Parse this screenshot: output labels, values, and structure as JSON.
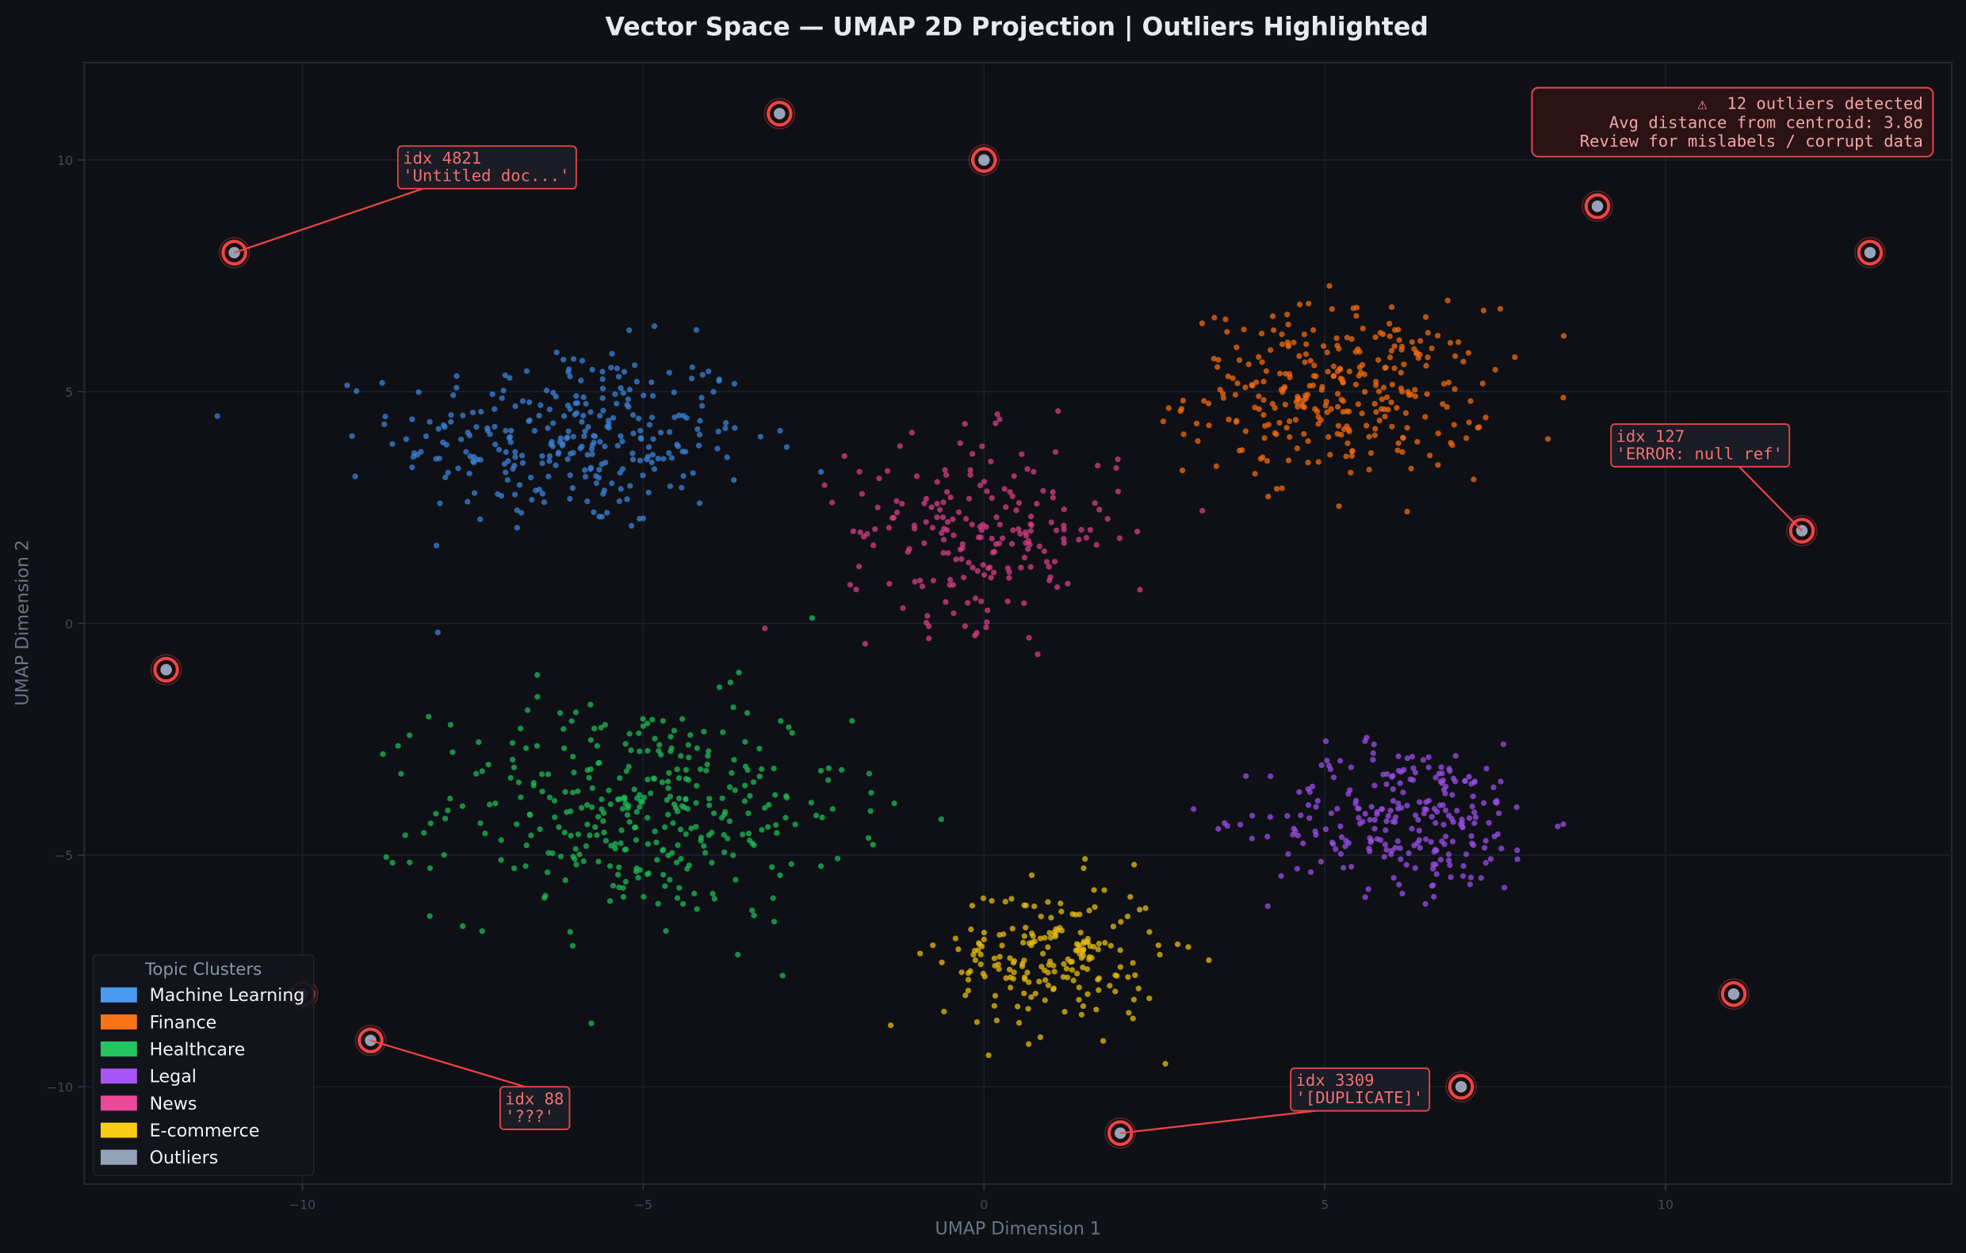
{
  "chart_data": {
    "type": "scatter",
    "title": "Vector Space — UMAP 2D Projection  |  Outliers Highlighted",
    "xlabel": "UMAP Dimension 1",
    "ylabel": "UMAP Dimension 2",
    "xlim": [
      -13.2,
      14.2
    ],
    "ylim": [
      -12.1,
      12.1
    ],
    "xticks": [
      -10,
      -5,
      0,
      5,
      10
    ],
    "yticks": [
      -10,
      -5,
      0,
      5,
      10
    ],
    "xtick_labels": [
      "−10",
      "−5",
      "0",
      "5",
      "10"
    ],
    "ytick_labels": [
      "−10",
      "−5",
      "0",
      "5",
      "10"
    ],
    "grid": true,
    "legend": {
      "title": "Topic Clusters",
      "placement": "bottom-left",
      "entries": [
        {
          "label": "Machine Learning",
          "color": "#4a9af0"
        },
        {
          "label": "Finance",
          "color": "#f97316"
        },
        {
          "label": "Healthcare",
          "color": "#22c55e"
        },
        {
          "label": "Legal",
          "color": "#a855f7"
        },
        {
          "label": "News",
          "color": "#ec4899"
        },
        {
          "label": "E-commerce",
          "color": "#facc15"
        },
        {
          "label": "Outliers",
          "color": "#94a3b8"
        }
      ]
    },
    "clusters": [
      {
        "name": "Machine Learning",
        "color": "#3b82d6",
        "center": [
          -6,
          4
        ],
        "spread": [
          1.3,
          1.0
        ],
        "count": 300
      },
      {
        "name": "Finance",
        "color": "#f06a10",
        "center": [
          5.2,
          5
        ],
        "spread": [
          1.1,
          0.9
        ],
        "count": 300
      },
      {
        "name": "Healthcare",
        "color": "#1fb855",
        "center": [
          -5,
          -4
        ],
        "spread": [
          1.5,
          1.2
        ],
        "count": 350
      },
      {
        "name": "Legal",
        "color": "#9a4ee6",
        "center": [
          6.2,
          -4.2
        ],
        "spread": [
          1.0,
          0.8
        ],
        "count": 250
      },
      {
        "name": "News",
        "color": "#d63d86",
        "center": [
          0,
          2
        ],
        "spread": [
          1.0,
          1.0
        ],
        "count": 200
      },
      {
        "name": "E-commerce",
        "color": "#e6bb10",
        "center": [
          1,
          -7.2
        ],
        "spread": [
          0.8,
          0.8
        ],
        "count": 200
      }
    ],
    "outliers": {
      "color": "#94a3b8",
      "ring_color": "#ef4444",
      "points": [
        [
          -11,
          8
        ],
        [
          -3,
          11
        ],
        [
          0,
          10
        ],
        [
          9,
          9
        ],
        [
          13,
          8
        ],
        [
          12,
          2
        ],
        [
          -12,
          -1
        ],
        [
          -10,
          -8
        ],
        [
          -9,
          -9
        ],
        [
          2,
          -11
        ],
        [
          7,
          -10
        ],
        [
          11,
          -8
        ]
      ]
    },
    "annotations": [
      {
        "lines": [
          "idx 4821",
          "'Untitled doc...'"
        ],
        "target": [
          -11,
          8
        ],
        "label_at": [
          -8.6,
          10.3
        ]
      },
      {
        "lines": [
          "idx 127",
          "'ERROR: null ref'"
        ],
        "target": [
          12,
          2
        ],
        "label_at": [
          9.2,
          4.3
        ]
      },
      {
        "lines": [
          "idx 88",
          "'???'"
        ],
        "target": [
          -9,
          -9
        ],
        "label_at": [
          -7.1,
          -10
        ]
      },
      {
        "lines": [
          "idx 3309",
          "'[DUPLICATE]'"
        ],
        "target": [
          2,
          -11
        ],
        "label_at": [
          4.5,
          -9.6
        ]
      }
    ],
    "info_box": {
      "lines": [
        "⚠  12 outliers detected",
        "Avg distance from centroid: 3.8σ",
        "Review for mislabels / corrupt data"
      ],
      "placement": "top-right"
    }
  }
}
